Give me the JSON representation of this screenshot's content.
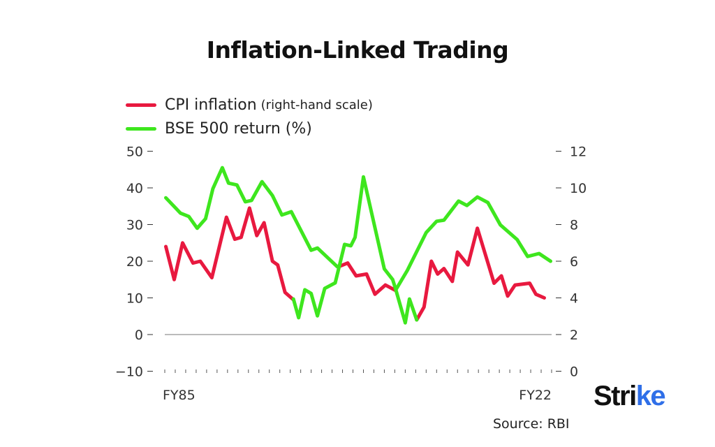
{
  "title": "Inflation-Linked Trading",
  "source": "Source: RBI",
  "logo": {
    "text": "Strike",
    "main": "Stri",
    "accent": "ke",
    "accent_color": "#2f6fe8"
  },
  "chart_data": {
    "type": "line",
    "title": "Inflation-Linked Trading",
    "x_tick_labels": [
      {
        "x": 1985,
        "label": "FY85"
      },
      {
        "x": 2022,
        "label": "FY22"
      }
    ],
    "xlim": [
      1985,
      2022
    ],
    "left_axis": {
      "ylim": [
        -10,
        50
      ],
      "ticks": [
        -10,
        0,
        10,
        20,
        30,
        40,
        50
      ]
    },
    "right_axis": {
      "ylim": [
        0,
        12
      ],
      "ticks": [
        0,
        2,
        4,
        6,
        8,
        10,
        12
      ]
    },
    "zero_line": 0,
    "legend_placement": "top-left",
    "series": [
      {
        "name": "CPI inflation",
        "name_note": "(right-hand scale)",
        "axis": "right",
        "color": "#e8193f",
        "segments": [
          [
            [
              1985.1,
              6.8
            ],
            [
              1985.9,
              5.0
            ],
            [
              1986.7,
              7.0
            ],
            [
              1987.7,
              5.9
            ],
            [
              1988.4,
              6.0
            ],
            [
              1989.5,
              5.1
            ],
            [
              1990.9,
              8.4
            ],
            [
              1991.7,
              7.2
            ],
            [
              1992.3,
              7.3
            ],
            [
              1993.1,
              8.9
            ],
            [
              1993.8,
              7.4
            ],
            [
              1994.5,
              8.1
            ],
            [
              1995.3,
              6.0
            ],
            [
              1995.8,
              5.8
            ],
            [
              1996.5,
              4.3
            ],
            [
              1997.3,
              3.9
            ]
          ],
          [
            [
              2001.6,
              5.7
            ],
            [
              2002.5,
              5.9
            ],
            [
              2003.3,
              5.2
            ],
            [
              2004.3,
              5.3
            ],
            [
              2005.1,
              4.2
            ],
            [
              2006.1,
              4.7
            ],
            [
              2007.1,
              4.4
            ]
          ],
          [
            [
              2009.1,
              2.8
            ],
            [
              2009.8,
              3.5
            ],
            [
              2010.5,
              6.0
            ],
            [
              2011.1,
              5.3
            ],
            [
              2011.7,
              5.6
            ],
            [
              2012.5,
              4.9
            ],
            [
              2013.0,
              6.5
            ],
            [
              2014.0,
              5.8
            ],
            [
              2014.9,
              7.8
            ],
            [
              2016.5,
              4.8
            ],
            [
              2017.2,
              5.2
            ],
            [
              2017.8,
              4.1
            ],
            [
              2018.5,
              4.7
            ],
            [
              2019.9,
              4.8
            ],
            [
              2020.5,
              4.2
            ],
            [
              2021.3,
              4.0
            ]
          ]
        ]
      },
      {
        "name": "BSE 500 return (%)",
        "axis": "left",
        "color": "#3ee61e",
        "segments": [
          [
            [
              1985.1,
              37.3
            ],
            [
              1986.5,
              33.1
            ],
            [
              1987.3,
              32.2
            ],
            [
              1988.1,
              29.0
            ],
            [
              1988.9,
              31.6
            ],
            [
              1989.6,
              39.8
            ],
            [
              1990.5,
              45.5
            ],
            [
              1991.1,
              41.3
            ],
            [
              1991.9,
              40.8
            ],
            [
              1992.7,
              36.2
            ],
            [
              1993.3,
              36.6
            ],
            [
              1994.3,
              41.7
            ],
            [
              1995.3,
              37.9
            ],
            [
              1996.2,
              32.6
            ],
            [
              1997.1,
              33.5
            ],
            [
              1999.0,
              23.0
            ],
            [
              1999.6,
              23.6
            ],
            [
              2001.5,
              18.5
            ]
          ],
          [
            [
              1997.3,
              9.7
            ],
            [
              1997.8,
              4.6
            ],
            [
              1998.4,
              12.2
            ],
            [
              1999.0,
              11.2
            ],
            [
              1999.6,
              5.1
            ],
            [
              2000.3,
              12.6
            ],
            [
              2001.3,
              14.1
            ],
            [
              2002.2,
              24.6
            ],
            [
              2002.8,
              24.2
            ],
            [
              2003.2,
              26.5
            ],
            [
              2004.0,
              43.0
            ],
            [
              2006.0,
              17.9
            ],
            [
              2006.8,
              15.0
            ],
            [
              2007.1,
              12.2
            ],
            [
              2008.0,
              3.2
            ],
            [
              2008.4,
              9.7
            ],
            [
              2009.1,
              4.0
            ]
          ],
          [
            [
              2007.1,
              12.2
            ],
            [
              2008.2,
              17.5
            ],
            [
              2010.0,
              27.8
            ],
            [
              2011.0,
              30.9
            ],
            [
              2011.7,
              31.2
            ],
            [
              2013.1,
              36.4
            ],
            [
              2013.9,
              35.2
            ],
            [
              2014.9,
              37.5
            ],
            [
              2015.9,
              36.0
            ],
            [
              2017.1,
              29.9
            ],
            [
              2018.7,
              25.9
            ],
            [
              2019.7,
              21.3
            ],
            [
              2020.8,
              22.1
            ],
            [
              2021.9,
              20.0
            ]
          ]
        ]
      }
    ]
  }
}
